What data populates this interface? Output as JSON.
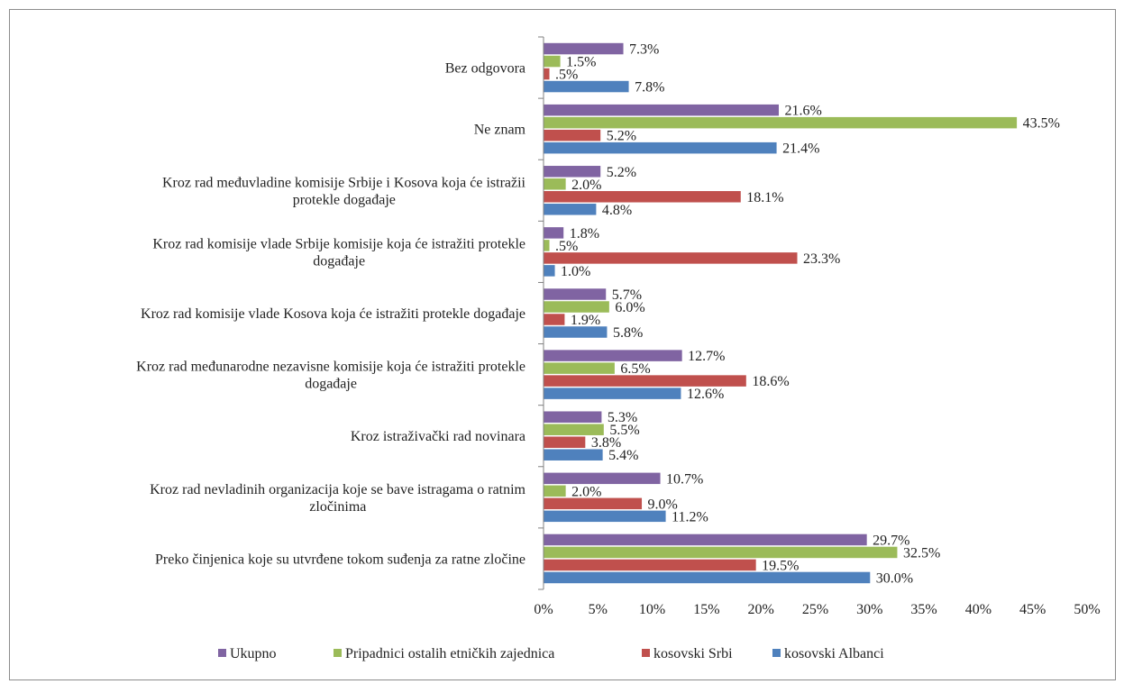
{
  "chart_data": {
    "type": "bar",
    "orientation": "horizontal",
    "categories": [
      [
        "Bez odgovora"
      ],
      [
        "Ne znam"
      ],
      [
        "Kroz rad međuvladine komisije Srbije i Kosova koja će istražii",
        "protekle događaje"
      ],
      [
        "Kroz rad komisije vlade Srbije komisije koja će istražiti protekle",
        "događaje"
      ],
      [
        "Kroz rad komisije vlade Kosova koja će istražiti protekle događaje"
      ],
      [
        "Kroz rad međunarodne nezavisne komisije koja će istražiti protekle",
        "događaje"
      ],
      [
        "Kroz istraživački rad novinara"
      ],
      [
        "Kroz rad nevladinih organizacija koje se bave istragama o ratnim",
        "zločinima"
      ],
      [
        "Preko činjenica koje su utvrđene tokom suđenja za ratne zločine"
      ]
    ],
    "series": [
      {
        "name": "Ukupno",
        "color": "#8064a2",
        "values": [
          7.3,
          21.6,
          5.2,
          1.8,
          5.7,
          12.7,
          5.3,
          10.7,
          29.7
        ],
        "labels": [
          "7.3%",
          "21.6%",
          "5.2%",
          "1.8%",
          "5.7%",
          "12.7%",
          "5.3%",
          "10.7%",
          "29.7%"
        ]
      },
      {
        "name": "Pripadnici ostalih etničkih zajednica",
        "color": "#9bbb59",
        "values": [
          1.5,
          43.5,
          2.0,
          0.5,
          6.0,
          6.5,
          5.5,
          2.0,
          32.5
        ],
        "labels": [
          "1.5%",
          "43.5%",
          "2.0%",
          ".5%",
          "6.0%",
          "6.5%",
          "5.5%",
          "2.0%",
          "32.5%"
        ]
      },
      {
        "name": "kosovski Srbi",
        "color": "#c0504d",
        "values": [
          0.5,
          5.2,
          18.1,
          23.3,
          1.9,
          18.6,
          3.8,
          9.0,
          19.5
        ],
        "labels": [
          ".5%",
          "5.2%",
          "18.1%",
          "23.3%",
          "1.9%",
          "18.6%",
          "3.8%",
          "9.0%",
          "19.5%"
        ]
      },
      {
        "name": "kosovski Albanci",
        "color": "#4f81bd",
        "values": [
          7.8,
          21.4,
          4.8,
          1.0,
          5.8,
          12.6,
          5.4,
          11.2,
          30.0
        ],
        "labels": [
          "7.8%",
          "21.4%",
          "4.8%",
          "1.0%",
          "5.8%",
          "12.6%",
          "5.4%",
          "11.2%",
          "30.0%"
        ]
      }
    ],
    "xticks": [
      "0%",
      "5%",
      "10%",
      "15%",
      "20%",
      "25%",
      "30%",
      "35%",
      "40%",
      "45%",
      "50%"
    ],
    "xlim": [
      0,
      50
    ],
    "grid": false,
    "legend_position": "bottom",
    "title": "",
    "xlabel": "",
    "ylabel": ""
  }
}
